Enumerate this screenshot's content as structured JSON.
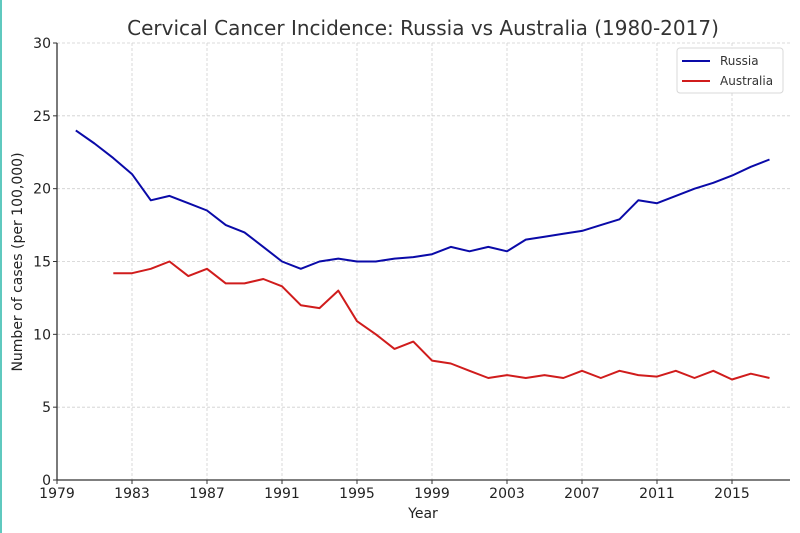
{
  "chart_data": {
    "type": "line",
    "title": "Cervical Cancer Incidence: Russia vs Australia (1980-2017)",
    "xlabel": "Year",
    "ylabel": "Number of cases (per 100,000)",
    "xlim": [
      1979,
      2018
    ],
    "ylim": [
      0,
      30
    ],
    "xticks": [
      1979,
      1983,
      1987,
      1991,
      1995,
      1999,
      2003,
      2007,
      2011,
      2015
    ],
    "yticks": [
      0,
      5,
      10,
      15,
      20,
      25,
      30
    ],
    "grid": true,
    "legend_position": "top-right",
    "series": [
      {
        "name": "Russia",
        "color": "#0a0aa8",
        "x": [
          1980,
          1981,
          1982,
          1983,
          1984,
          1985,
          1986,
          1987,
          1988,
          1989,
          1990,
          1991,
          1992,
          1993,
          1994,
          1995,
          1996,
          1997,
          1998,
          1999,
          2000,
          2001,
          2002,
          2003,
          2004,
          2005,
          2006,
          2007,
          2008,
          2009,
          2010,
          2011,
          2012,
          2013,
          2014,
          2015,
          2016,
          2017
        ],
        "values": [
          24.0,
          23.1,
          22.1,
          21.0,
          19.2,
          19.5,
          19.0,
          18.5,
          17.5,
          17.0,
          16.0,
          15.0,
          14.5,
          15.0,
          15.2,
          15.0,
          15.0,
          15.2,
          15.3,
          15.5,
          16.0,
          15.7,
          16.0,
          15.7,
          16.5,
          16.7,
          16.9,
          17.1,
          17.5,
          17.9,
          19.2,
          19.0,
          19.5,
          20.0,
          20.4,
          20.9,
          21.5,
          22.0
        ]
      },
      {
        "name": "Australia",
        "color": "#d01c1c",
        "x": [
          1982,
          1983,
          1984,
          1985,
          1986,
          1987,
          1988,
          1989,
          1990,
          1991,
          1992,
          1993,
          1994,
          1995,
          1996,
          1997,
          1998,
          1999,
          2000,
          2001,
          2002,
          2003,
          2004,
          2005,
          2006,
          2007,
          2008,
          2009,
          2010,
          2011,
          2012,
          2013,
          2014,
          2015,
          2016,
          2017
        ],
        "values": [
          14.2,
          14.2,
          14.5,
          15.0,
          14.0,
          14.5,
          13.5,
          13.5,
          13.8,
          13.3,
          12.0,
          11.8,
          13.0,
          10.9,
          10.0,
          9.0,
          9.5,
          8.2,
          8.0,
          7.5,
          7.0,
          7.2,
          7.0,
          7.2,
          7.0,
          7.5,
          7.0,
          7.5,
          7.2,
          7.1,
          7.5,
          7.0,
          7.5,
          6.9,
          7.3,
          7.0
        ]
      }
    ]
  }
}
